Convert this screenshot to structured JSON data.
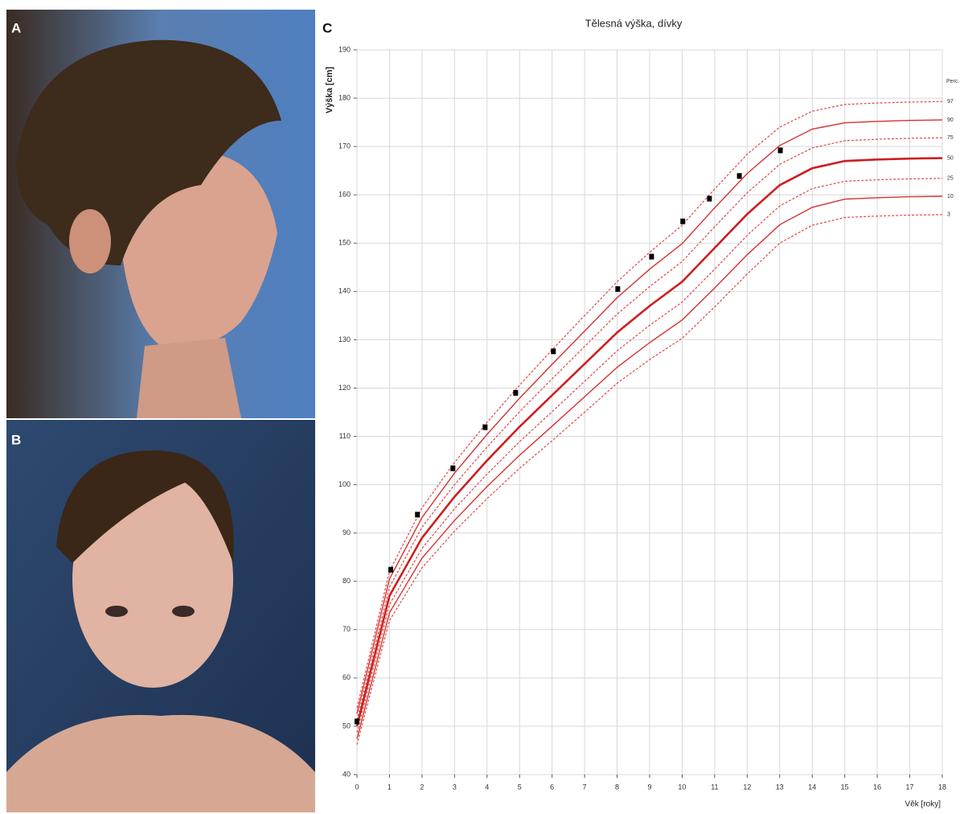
{
  "figure": {
    "panels": [
      "A",
      "B",
      "C"
    ]
  },
  "chart_data": {
    "type": "line",
    "title": "Tělesná výška, dívky",
    "y_label": "Výška [cm]",
    "x_label": "Věk [roky]",
    "legend_title": "Perc.",
    "xlim": [
      0,
      18
    ],
    "ylim": [
      40,
      190
    ],
    "xticks": [
      0,
      1,
      2,
      3,
      4,
      5,
      6,
      7,
      8,
      9,
      10,
      11,
      12,
      13,
      14,
      15,
      16,
      17,
      18
    ],
    "yticks": [
      40,
      50,
      60,
      70,
      80,
      90,
      100,
      110,
      120,
      130,
      140,
      150,
      160,
      170,
      180,
      190
    ],
    "grid": true,
    "x": [
      0,
      1,
      2,
      3,
      4,
      5,
      6,
      7,
      8,
      9,
      10,
      11,
      12,
      13,
      14,
      15,
      16,
      17,
      18
    ],
    "series": [
      {
        "name": "97",
        "color": "#e04848",
        "style": "dashed",
        "values": [
          53.8,
          82.1,
          95.2,
          104.6,
          112.9,
          120.6,
          127.9,
          135,
          142,
          148.1,
          153.7,
          161.2,
          168.4,
          174,
          177.3,
          178.7,
          179,
          179.2,
          179.3
        ]
      },
      {
        "name": "90",
        "color": "#d83030",
        "style": "solid",
        "values": [
          52.6,
          80.5,
          93.2,
          102.4,
          110.4,
          117.9,
          124.9,
          131.8,
          138.7,
          144.6,
          149.9,
          157.3,
          164.4,
          170.2,
          173.6,
          174.9,
          175.2,
          175.4,
          175.5
        ]
      },
      {
        "name": "75",
        "color": "#e04848",
        "style": "dashed",
        "values": [
          51.3,
          78.8,
          91.2,
          100,
          107.8,
          115.1,
          121.9,
          128.6,
          135.3,
          141,
          146.2,
          153.4,
          160.4,
          166.3,
          169.7,
          171.2,
          171.5,
          171.7,
          171.8
        ]
      },
      {
        "name": "50",
        "color": "#cc1f1f",
        "style": "bold",
        "values": [
          50,
          77,
          89,
          97.5,
          105,
          112,
          118.5,
          125,
          131.5,
          137,
          142,
          149,
          156,
          162,
          165.5,
          167,
          167.3,
          167.5,
          167.6
        ]
      },
      {
        "name": "25",
        "color": "#e04848",
        "style": "dashed",
        "values": [
          48.7,
          75.2,
          86.8,
          95,
          102.2,
          108.9,
          115.1,
          121.4,
          127.7,
          133,
          137.8,
          144.6,
          151.6,
          157.7,
          161.3,
          162.8,
          163.1,
          163.3,
          163.4
        ]
      },
      {
        "name": "10",
        "color": "#d83030",
        "style": "solid",
        "values": [
          47.4,
          73.5,
          84.8,
          92.6,
          99.6,
          106.1,
          112.1,
          118.2,
          124.3,
          129.4,
          134.1,
          140.7,
          147.6,
          153.8,
          157.4,
          159.1,
          159.4,
          159.6,
          159.7
        ]
      },
      {
        "name": "3",
        "color": "#e04848",
        "style": "dashed",
        "values": [
          46.2,
          71.9,
          82.8,
          90.4,
          97.1,
          103.4,
          109.1,
          115,
          121,
          125.9,
          130.3,
          136.8,
          143.6,
          150,
          153.7,
          155.3,
          155.6,
          155.8,
          155.9
        ]
      }
    ],
    "measurements": {
      "color": "#000000",
      "x": [
        0,
        1.04,
        1.86,
        2.95,
        3.94,
        4.88,
        6.04,
        8.02,
        9.06,
        10.02,
        10.84,
        11.76,
        13.02
      ],
      "values": [
        51,
        82.4,
        93.8,
        103.4,
        111.9,
        119,
        127.6,
        140.5,
        147.2,
        154.5,
        159.2,
        163.9,
        169.2
      ]
    }
  }
}
